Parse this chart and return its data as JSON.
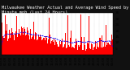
{
  "title": "Milwaukee Weather Actual and Average Wind Speed by Minute mph (Last 24 Hours)",
  "title_fontsize": 3.8,
  "bg_color": "#111111",
  "plot_bg": "#ffffff",
  "bar_color": "#ff0000",
  "line_color": "#0000ff",
  "n_points": 1440,
  "ylim": [
    0,
    35
  ],
  "yticks": [
    5,
    10,
    15,
    20,
    25,
    30,
    35
  ],
  "ylabel_fontsize": 3.2,
  "xlabel_fontsize": 2.8,
  "seed": 99
}
